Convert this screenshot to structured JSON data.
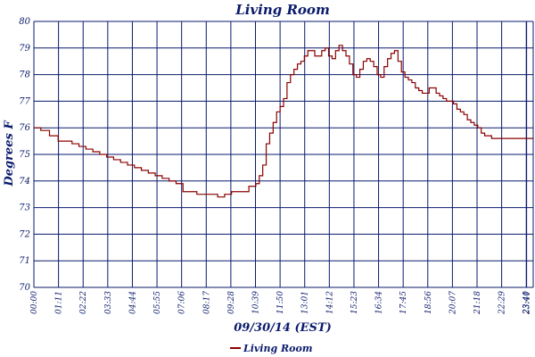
{
  "chart_data": {
    "type": "line",
    "title": "Living Room",
    "xlabel": "09/30/14 (EST)",
    "ylabel": "Degrees F",
    "ylim": [
      70,
      80
    ],
    "yticks": [
      "70",
      "71",
      "72",
      "73",
      "74",
      "75",
      "76",
      "77",
      "78",
      "79",
      "80"
    ],
    "xlim_minutes": [
      0,
      1440
    ],
    "xticks": [
      "00:00",
      "01:11",
      "02:22",
      "03:33",
      "04:44",
      "05:55",
      "07:06",
      "08:17",
      "09:28",
      "10:39",
      "11:50",
      "13:01",
      "14:12",
      "15:23",
      "16:34",
      "17:45",
      "18:56",
      "20:07",
      "21:18",
      "22:29",
      "23:40",
      "23:41"
    ],
    "grid": true,
    "legend": "bottom",
    "color": "#8b0000",
    "series": [
      {
        "name": "Living Room",
        "time": [
          "00:00",
          "00:20",
          "00:45",
          "01:10",
          "01:30",
          "01:50",
          "02:10",
          "02:30",
          "02:50",
          "03:10",
          "03:30",
          "03:50",
          "04:10",
          "04:30",
          "04:50",
          "05:10",
          "05:30",
          "05:50",
          "06:10",
          "06:30",
          "06:50",
          "07:10",
          "07:30",
          "07:50",
          "08:10",
          "08:30",
          "08:50",
          "09:10",
          "09:30",
          "09:50",
          "10:05",
          "10:20",
          "10:30",
          "10:40",
          "10:50",
          "11:00",
          "11:10",
          "11:20",
          "11:30",
          "11:40",
          "11:50",
          "12:00",
          "12:10",
          "12:20",
          "12:30",
          "12:40",
          "12:50",
          "13:00",
          "13:10",
          "13:20",
          "13:30",
          "13:40",
          "13:50",
          "14:00",
          "14:10",
          "14:20",
          "14:30",
          "14:40",
          "14:50",
          "15:00",
          "15:10",
          "15:20",
          "15:30",
          "15:40",
          "15:50",
          "16:00",
          "16:10",
          "16:20",
          "16:30",
          "16:40",
          "16:50",
          "17:00",
          "17:10",
          "17:20",
          "17:30",
          "17:40",
          "17:50",
          "18:00",
          "18:10",
          "18:20",
          "18:30",
          "18:40",
          "18:50",
          "19:00",
          "19:10",
          "19:20",
          "19:30",
          "19:40",
          "19:50",
          "20:00",
          "20:10",
          "20:20",
          "20:30",
          "20:40",
          "20:50",
          "21:00",
          "21:10",
          "21:20",
          "21:30",
          "21:40",
          "21:50",
          "22:00",
          "22:10",
          "22:20",
          "22:30",
          "22:40",
          "22:50",
          "23:00",
          "23:10",
          "23:20",
          "23:30",
          "23:40",
          "23:59"
        ],
        "values": [
          76.0,
          75.9,
          75.7,
          75.5,
          75.5,
          75.4,
          75.3,
          75.2,
          75.1,
          75.0,
          74.9,
          74.8,
          74.7,
          74.6,
          74.5,
          74.4,
          74.3,
          74.2,
          74.1,
          74.0,
          73.9,
          73.6,
          73.6,
          73.5,
          73.5,
          73.5,
          73.4,
          73.5,
          73.6,
          73.6,
          73.6,
          73.8,
          73.8,
          73.9,
          74.2,
          74.6,
          75.4,
          75.8,
          76.2,
          76.6,
          76.8,
          77.1,
          77.7,
          78.0,
          78.2,
          78.4,
          78.5,
          78.7,
          78.9,
          78.9,
          78.7,
          78.7,
          78.9,
          79.0,
          78.7,
          78.6,
          78.9,
          79.1,
          78.9,
          78.7,
          78.4,
          78.0,
          77.9,
          78.2,
          78.5,
          78.6,
          78.5,
          78.3,
          78.0,
          77.9,
          78.3,
          78.6,
          78.8,
          78.9,
          78.5,
          78.1,
          77.9,
          77.8,
          77.7,
          77.5,
          77.4,
          77.3,
          77.3,
          77.5,
          77.5,
          77.3,
          77.2,
          77.1,
          77.0,
          77.0,
          76.9,
          76.7,
          76.6,
          76.5,
          76.3,
          76.2,
          76.1,
          76.0,
          75.8,
          75.7,
          75.7,
          75.6,
          75.6,
          75.6,
          75.6,
          75.6,
          75.6,
          75.6,
          75.6,
          75.6,
          75.6,
          75.6,
          75.6
        ]
      }
    ]
  }
}
